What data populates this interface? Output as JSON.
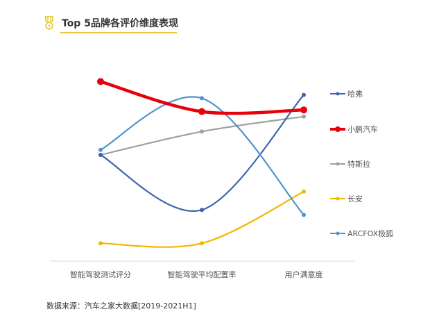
{
  "header": {
    "title": "Top 5品牌各评价维度表现",
    "icon": "medal-icon",
    "accent_color": "#e8c83a"
  },
  "footer": {
    "source": "数据来源：汽车之家大数据[2019-2021H1]"
  },
  "chart_data": {
    "type": "line",
    "title": "Top 5品牌各评价维度表现",
    "categories": [
      "智能驾驶测试评分",
      "智能驾驶平均配置率",
      "用户满意度"
    ],
    "xlabel": "",
    "ylabel": "",
    "grid": false,
    "legend_position": "right",
    "smooth": true,
    "note": "No y-axis shown; values are relative positions (0-100 scale, higher = better) estimated from pixel heights.",
    "ylim": [
      0,
      100
    ],
    "series": [
      {
        "name": "哈弗",
        "color": "#3f64ad",
        "values": [
          60,
          27,
          96
        ]
      },
      {
        "name": "小鹏汽车",
        "color": "#e8000b",
        "values": [
          104,
          86,
          87
        ]
      },
      {
        "name": "特斯拉",
        "color": "#a0a0a0",
        "values": [
          60,
          74,
          83
        ]
      },
      {
        "name": "长安",
        "color": "#f0b800",
        "values": [
          7,
          7,
          38
        ]
      },
      {
        "name": "ARCFOX极狐",
        "color": "#5294cc",
        "values": [
          63,
          94,
          24
        ]
      }
    ]
  }
}
